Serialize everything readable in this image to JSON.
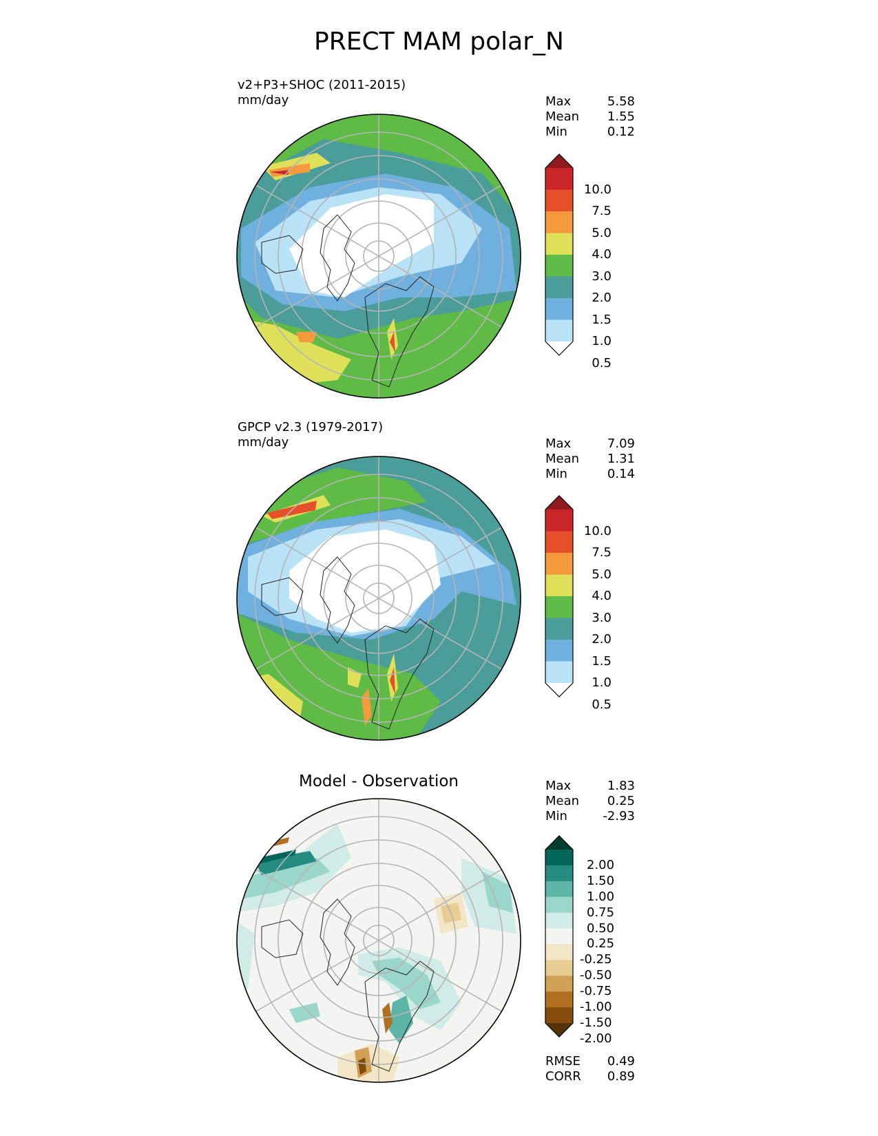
{
  "title": "PRECT MAM polar_N",
  "panels": [
    {
      "title_line1": "v2+P3+SHOC (2011-2015)",
      "title_line2": "mm/day",
      "stats": [
        {
          "label": "Max",
          "value": "5.58"
        },
        {
          "label": "Mean",
          "value": "1.55"
        },
        {
          "label": "Min",
          "value": "0.12"
        }
      ],
      "colorbar_ticks": [
        "10.0",
        "7.5",
        "5.0",
        "4.0",
        "3.0",
        "2.0",
        "1.5",
        "1.0",
        "0.5"
      ],
      "colorbar_colors": [
        "#8e1c1e",
        "#c9252b",
        "#e5502b",
        "#f59a3c",
        "#dfe05a",
        "#5fba46",
        "#4a9d98",
        "#6fb0de",
        "#b9e2f6",
        "#ffffff"
      ]
    },
    {
      "title_line1": "GPCP v2.3 (1979-2017)",
      "title_line2": "mm/day",
      "stats": [
        {
          "label": "Max",
          "value": "7.09"
        },
        {
          "label": "Mean",
          "value": "1.31"
        },
        {
          "label": "Min",
          "value": "0.14"
        }
      ],
      "colorbar_ticks": [
        "10.0",
        "7.5",
        "5.0",
        "4.0",
        "3.0",
        "2.0",
        "1.5",
        "1.0",
        "0.5"
      ],
      "colorbar_colors": [
        "#8e1c1e",
        "#c9252b",
        "#e5502b",
        "#f59a3c",
        "#dfe05a",
        "#5fba46",
        "#4a9d98",
        "#6fb0de",
        "#b9e2f6",
        "#ffffff"
      ]
    },
    {
      "title_center": "Model - Observation",
      "stats": [
        {
          "label": "Max",
          "value": "1.83"
        },
        {
          "label": "Mean",
          "value": "0.25"
        },
        {
          "label": "Min",
          "value": "-2.93"
        }
      ],
      "colorbar_ticks": [
        "2.00",
        "1.50",
        "1.00",
        "0.75",
        "0.50",
        "0.25",
        "-0.25",
        "-0.50",
        "-0.75",
        "-1.00",
        "-1.50",
        "-2.00"
      ],
      "colorbar_colors": [
        "#013c30",
        "#02665a",
        "#268b80",
        "#5db5a8",
        "#9bd6cb",
        "#d1ece6",
        "#f4f4f2",
        "#f3e6c6",
        "#e7cc94",
        "#cfa055",
        "#b06f21",
        "#844c0c",
        "#563306"
      ],
      "footer_stats": [
        {
          "label": "RMSE",
          "value": "0.49"
        },
        {
          "label": "CORR",
          "value": "0.89"
        }
      ]
    }
  ]
}
